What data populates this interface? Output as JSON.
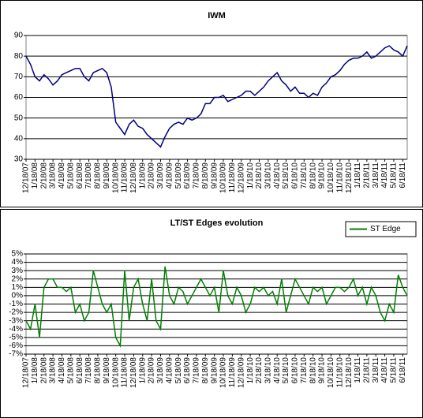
{
  "chart_data": [
    {
      "type": "line",
      "title": "IWM",
      "categories": [
        "12/18/07",
        null,
        "1/18/08",
        null,
        "2/18/08",
        null,
        "3/18/08",
        null,
        "4/18/08",
        null,
        "5/18/08",
        null,
        "6/18/08",
        null,
        "7/18/08",
        null,
        "8/18/08",
        null,
        "9/18/08",
        null,
        "10/18/08",
        null,
        "11/18/08",
        null,
        "12/18/08",
        null,
        "1/18/09",
        null,
        "2/18/09",
        null,
        "3/18/09",
        null,
        "4/18/09",
        null,
        "5/18/09",
        null,
        "6/18/09",
        null,
        "7/18/09",
        null,
        "8/18/09",
        null,
        "9/18/09",
        null,
        "10/18/09",
        null,
        "11/18/09",
        null,
        "12/18/09",
        null,
        "1/18/10",
        null,
        "2/18/10",
        null,
        "3/18/10",
        null,
        "4/18/10",
        null,
        "5/18/10",
        null,
        "6/18/10",
        null,
        "7/18/10",
        null,
        "8/18/10",
        null,
        "9/18/10",
        null,
        "10/18/10",
        null,
        "11/18/10",
        null,
        "12/18/10",
        null,
        "1/18/11",
        null,
        "2/18/11",
        null,
        "3/18/11",
        null,
        "4/18/11",
        null,
        "5/18/11",
        null,
        "6/18/11",
        null
      ],
      "series": [
        {
          "color": "#000080",
          "values": [
            80,
            76,
            70,
            68,
            71,
            69,
            66,
            68,
            71,
            72,
            73,
            74,
            74,
            70,
            68,
            72,
            73,
            74,
            72,
            65,
            48,
            45,
            42,
            47,
            49,
            46,
            45,
            42,
            40,
            38,
            36,
            41,
            45,
            47,
            48,
            47,
            50,
            49,
            50,
            52,
            57,
            57,
            60,
            60,
            61,
            58,
            59,
            60,
            61,
            63,
            63,
            61,
            63,
            65,
            68,
            70,
            72,
            68,
            66,
            63,
            65,
            62,
            62,
            60,
            62,
            61,
            65,
            67,
            70,
            71,
            73,
            76,
            78,
            79,
            79,
            80,
            82,
            79,
            80,
            82,
            84,
            85,
            83,
            82,
            80,
            85
          ]
        }
      ],
      "ylim": [
        30,
        90
      ],
      "yticks": [
        30,
        40,
        50,
        60,
        70,
        80,
        90
      ],
      "grid": true
    },
    {
      "type": "line",
      "title": "LT/ST Edges evolution",
      "categories": [
        "12/18/07",
        null,
        "1/18/08",
        null,
        "2/18/08",
        null,
        "3/18/08",
        null,
        "4/18/08",
        null,
        "5/18/08",
        null,
        "6/18/08",
        null,
        "7/18/08",
        null,
        "8/18/08",
        null,
        "9/18/08",
        null,
        "10/18/08",
        null,
        "11/18/08",
        null,
        "12/18/08",
        null,
        "1/18/09",
        null,
        "2/18/09",
        null,
        "3/18/09",
        null,
        "4/18/09",
        null,
        "5/18/09",
        null,
        "6/18/09",
        null,
        "7/18/09",
        null,
        "8/18/09",
        null,
        "9/18/09",
        null,
        "10/18/09",
        null,
        "11/18/09",
        null,
        "12/18/09",
        null,
        "1/18/10",
        null,
        "2/18/10",
        null,
        "3/18/10",
        null,
        "4/18/10",
        null,
        "5/18/10",
        null,
        "6/18/10",
        null,
        "7/18/10",
        null,
        "8/18/10",
        null,
        "9/18/10",
        null,
        "10/18/10",
        null,
        "11/18/10",
        null,
        "12/18/10",
        null,
        "1/18/11",
        null,
        "2/18/11",
        null,
        "3/18/11",
        null,
        "4/18/11",
        null,
        "5/18/11",
        null,
        "6/18/11",
        null
      ],
      "series": [
        {
          "name": "ST Edge",
          "color": "#008000",
          "values": [
            -3,
            -4,
            -1,
            -5,
            1,
            2,
            2,
            1,
            1,
            0.5,
            1,
            -2,
            -1,
            -3,
            -2,
            3,
            1,
            -1,
            -2,
            -1,
            -5,
            -6,
            3,
            -3,
            1,
            2,
            -1,
            -3,
            2,
            -3,
            -4,
            3.5,
            0,
            -1,
            1,
            0.5,
            -1,
            0,
            1,
            2,
            1,
            0,
            1,
            -2,
            3,
            0,
            -1,
            1,
            0,
            -2,
            -1,
            1,
            0.5,
            1,
            0,
            0.5,
            -1,
            2,
            -2,
            0,
            2,
            1,
            0,
            -1,
            1,
            0.5,
            1,
            -1,
            0,
            1,
            1,
            0.5,
            1,
            2,
            0,
            1,
            -1,
            1,
            0,
            -2,
            -3,
            -1,
            -2,
            2.5,
            1,
            0
          ]
        }
      ],
      "ylim": [
        -7,
        5
      ],
      "yticks": [
        {
          "value": -7,
          "label": "-7%"
        },
        {
          "value": -6,
          "label": "-6%"
        },
        {
          "value": -5,
          "label": "-5%"
        },
        {
          "value": -4,
          "label": "-4%"
        },
        {
          "value": -3,
          "label": "-3%"
        },
        {
          "value": -2,
          "label": "-2%"
        },
        {
          "value": -1,
          "label": "-1%"
        },
        {
          "value": 0,
          "label": "0%"
        },
        {
          "value": 1,
          "label": "1%"
        },
        {
          "value": 2,
          "label": "2%"
        },
        {
          "value": 3,
          "label": "3%"
        },
        {
          "value": 4,
          "label": "4%"
        },
        {
          "value": 5,
          "label": "5%"
        }
      ],
      "grid": true,
      "legend": "top-right"
    }
  ]
}
